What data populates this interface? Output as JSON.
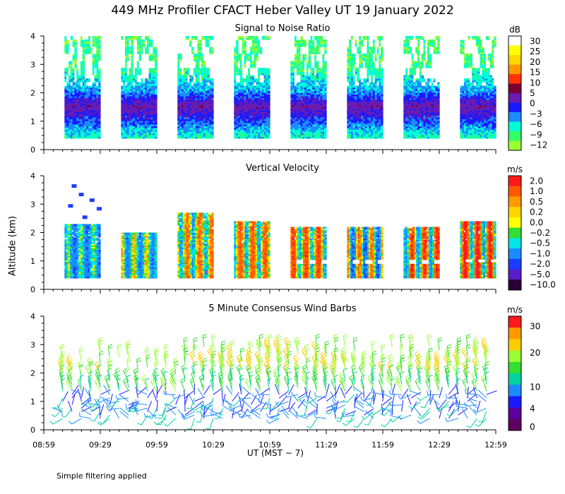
{
  "figure": {
    "title": "449 MHz Profiler CFACT Heber Valley UT 19 January 2022",
    "y_axis_label": "Altitude (km)",
    "x_axis_label": "UT  (MST − 7)",
    "footnote": "Simple filtering applied"
  },
  "chart_data": [
    {
      "type": "heatmap",
      "title": "Signal to Noise Ratio",
      "xlabel": "UT  (MST − 7)",
      "ylabel": "Altitude (km)",
      "x_ticks": [
        "08:59",
        "09:29",
        "09:59",
        "10:29",
        "10:59",
        "11:29",
        "11:59",
        "12:29",
        "12:59"
      ],
      "x_range": [
        "08:59",
        "12:59"
      ],
      "y_ticks": [
        "0",
        "1",
        "2",
        "3",
        "4"
      ],
      "ylim": [
        0,
        4
      ],
      "colorbar": {
        "unit": "dB",
        "labels": [
          "30",
          "25",
          "20",
          "15",
          "10",
          "5",
          "0",
          "−3",
          "−6",
          "−9",
          "−12"
        ]
      },
      "data_blocks": [
        {
          "start": "09:10",
          "end": "09:29",
          "top_km": 4.0
        },
        {
          "start": "09:40",
          "end": "09:59",
          "top_km": 4.0
        },
        {
          "start": "10:10",
          "end": "10:29",
          "top_km": 4.0
        },
        {
          "start": "10:40",
          "end": "10:59",
          "top_km": 4.0
        },
        {
          "start": "11:10",
          "end": "11:29",
          "top_km": 4.0
        },
        {
          "start": "11:40",
          "end": "11:59",
          "top_km": 4.0
        },
        {
          "start": "12:10",
          "end": "12:29",
          "top_km": 4.0
        },
        {
          "start": "12:40",
          "end": "12:59",
          "top_km": 4.0
        }
      ],
      "profile": [
        {
          "alt_km": 0.5,
          "snr_db": -9
        },
        {
          "alt_km": 1.0,
          "snr_db": -4
        },
        {
          "alt_km": 1.5,
          "snr_db": 1
        },
        {
          "alt_km": 2.0,
          "snr_db": -6
        },
        {
          "alt_km": 2.5,
          "snr_db": -9
        },
        {
          "alt_km": 3.0,
          "snr_db": -11
        },
        {
          "alt_km": 3.5,
          "snr_db": -11
        },
        {
          "alt_km": 4.0,
          "snr_db": -11
        }
      ]
    },
    {
      "type": "heatmap",
      "title": "Vertical Velocity",
      "xlabel": "UT  (MST − 7)",
      "ylabel": "Altitude (km)",
      "x_ticks": [
        "08:59",
        "09:29",
        "09:59",
        "10:29",
        "10:59",
        "11:29",
        "11:59",
        "12:29",
        "12:59"
      ],
      "x_range": [
        "08:59",
        "12:59"
      ],
      "y_ticks": [
        "0",
        "1",
        "2",
        "3",
        "4"
      ],
      "ylim": [
        0,
        4
      ],
      "colorbar": {
        "unit": "m/s",
        "labels": [
          "2.0",
          "1.0",
          "0.5",
          "0.2",
          "0.0",
          "−0.2",
          "−0.5",
          "−1.0",
          "−2.0",
          "−5.0",
          "−10.0"
        ]
      },
      "data_blocks": [
        {
          "start": "09:10",
          "end": "09:29",
          "top_km": 2.3,
          "typical_w_ms": -0.8
        },
        {
          "start": "09:40",
          "end": "09:59",
          "top_km": 2.0,
          "typical_w_ms": -0.5
        },
        {
          "start": "10:10",
          "end": "10:29",
          "top_km": 2.7,
          "typical_w_ms": 0.1
        },
        {
          "start": "10:40",
          "end": "10:59",
          "top_km": 2.4,
          "typical_w_ms": 0.2
        },
        {
          "start": "11:10",
          "end": "11:29",
          "top_km": 2.2,
          "typical_w_ms": 0.4
        },
        {
          "start": "11:40",
          "end": "11:59",
          "top_km": 2.2,
          "typical_w_ms": -0.3
        },
        {
          "start": "12:10",
          "end": "12:29",
          "top_km": 2.2,
          "typical_w_ms": 0.3
        },
        {
          "start": "12:40",
          "end": "12:59",
          "top_km": 2.4,
          "typical_w_ms": 0.5
        }
      ]
    },
    {
      "type": "scatter",
      "title": "5 Minute Consensus Wind Barbs",
      "xlabel": "UT  (MST − 7)",
      "ylabel": "Altitude (km)",
      "x_ticks": [
        "08:59",
        "09:29",
        "09:59",
        "10:29",
        "10:59",
        "11:29",
        "11:59",
        "12:29",
        "12:59"
      ],
      "x_range": [
        "08:59",
        "12:59"
      ],
      "y_ticks": [
        "0",
        "1",
        "2",
        "3",
        "4"
      ],
      "ylim": [
        0,
        4
      ],
      "colorbar": {
        "unit": "m/s",
        "labels": [
          "30",
          "20",
          "10",
          "4",
          "0"
        ]
      },
      "speed_range_ms": [
        0,
        33
      ],
      "time_step_min": 5,
      "altitude_range_km": [
        0.4,
        3.0
      ]
    }
  ],
  "palettes": {
    "snr": [
      "#ffffff",
      "#ffff00",
      "#ffd700",
      "#ff9900",
      "#ff3300",
      "#7a0033",
      "#6a1cb0",
      "#1a1aff",
      "#1a8cff",
      "#00ffd5",
      "#33ff66",
      "#99ff33"
    ],
    "vv": [
      "#ff1a1a",
      "#ff5a00",
      "#ff9900",
      "#ffd500",
      "#ffff00",
      "#33dd33",
      "#00e5e5",
      "#1a8cff",
      "#1a3cff",
      "#5a1cc8",
      "#2a003c"
    ],
    "wind": [
      "#ff1a1a",
      "#ff9900",
      "#ffcc00",
      "#99ff33",
      "#33dd33",
      "#00d2a0",
      "#1a8cff",
      "#1a1aff",
      "#5a009c",
      "#600060"
    ]
  }
}
